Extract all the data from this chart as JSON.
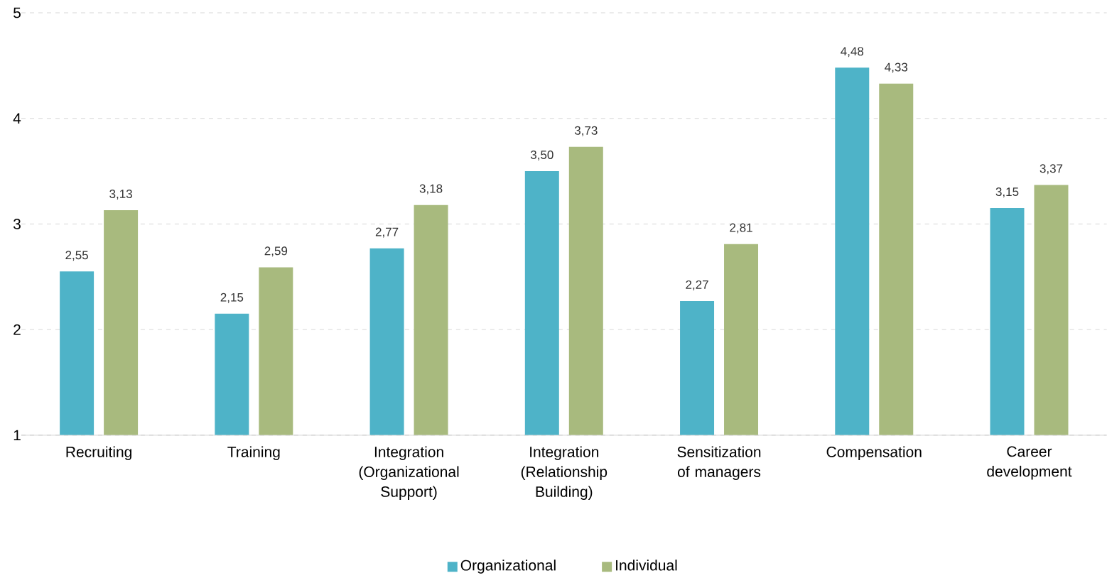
{
  "chart_data": {
    "type": "bar",
    "categories": [
      "Recruiting",
      "Training",
      "Integration (Organizational Support)",
      "Integration (Relationship Building)",
      "Sensitization of managers",
      "Compensation",
      "Career development"
    ],
    "series": [
      {
        "name": "Organizational",
        "color": "#4eb3c8",
        "values": [
          2.55,
          2.15,
          2.77,
          3.5,
          2.27,
          4.48,
          3.15
        ],
        "value_labels": [
          "2,55",
          "2,15",
          "2,77",
          "3,50",
          "2,27",
          "4,48",
          "3,15"
        ]
      },
      {
        "name": "Individual",
        "color": "#a8ba7e",
        "values": [
          3.13,
          2.59,
          3.18,
          3.73,
          2.81,
          4.33,
          3.37
        ],
        "value_labels": [
          "3,13",
          "2,59",
          "3,18",
          "3,73",
          "2,81",
          "4,33",
          "3,37"
        ]
      }
    ],
    "ylim": [
      1,
      5
    ],
    "yticks": [
      1,
      2,
      3,
      4,
      5
    ],
    "grid": "y",
    "legend": "bottom"
  }
}
